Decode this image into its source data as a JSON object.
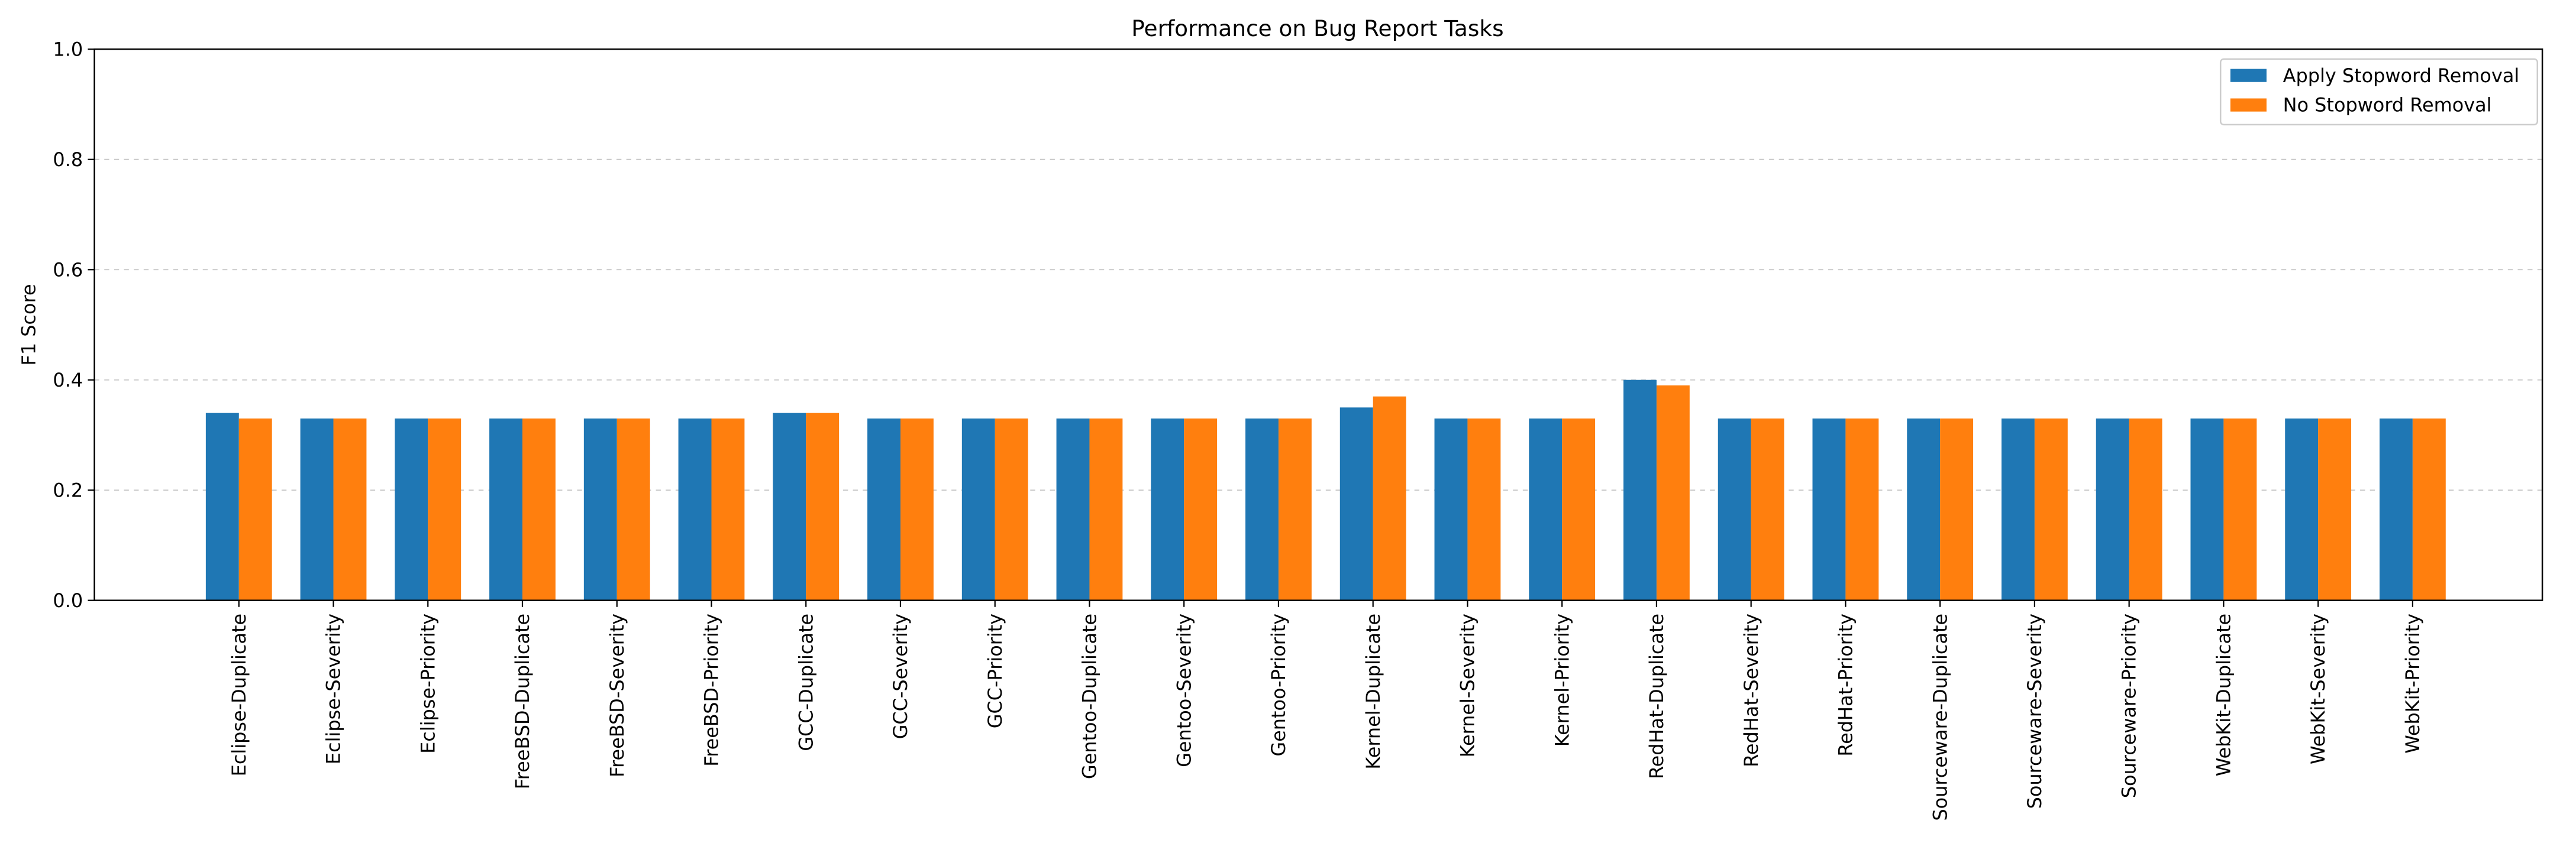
{
  "chart_data": {
    "type": "bar",
    "title": "Performance on Bug Report Tasks",
    "xlabel": "",
    "ylabel": "F1 Score",
    "ylim": [
      0,
      1.0
    ],
    "yticks": [
      "0.0",
      "0.2",
      "0.4",
      "0.6",
      "0.8",
      "1.0"
    ],
    "grid": "horizontal dashed",
    "legend_position": "top-right",
    "categories": [
      "Eclipse-Duplicate",
      "Eclipse-Severity",
      "Eclipse-Priority",
      "FreeBSD-Duplicate",
      "FreeBSD-Severity",
      "FreeBSD-Priority",
      "GCC-Duplicate",
      "GCC-Severity",
      "GCC-Priority",
      "Gentoo-Duplicate",
      "Gentoo-Severity",
      "Gentoo-Priority",
      "Kernel-Duplicate",
      "Kernel-Severity",
      "Kernel-Priority",
      "RedHat-Duplicate",
      "RedHat-Severity",
      "RedHat-Priority",
      "Sourceware-Duplicate",
      "Sourceware-Severity",
      "Sourceware-Priority",
      "WebKit-Duplicate",
      "WebKit-Severity",
      "WebKit-Priority"
    ],
    "series": [
      {
        "name": "Apply Stopword Removal",
        "color": "#1f77b4",
        "values": [
          0.34,
          0.33,
          0.33,
          0.33,
          0.33,
          0.33,
          0.34,
          0.33,
          0.33,
          0.33,
          0.33,
          0.33,
          0.35,
          0.33,
          0.33,
          0.4,
          0.33,
          0.33,
          0.33,
          0.33,
          0.33,
          0.33,
          0.33,
          0.33
        ]
      },
      {
        "name": "No Stopword Removal",
        "color": "#ff7f0e",
        "values": [
          0.33,
          0.33,
          0.33,
          0.33,
          0.33,
          0.33,
          0.34,
          0.33,
          0.33,
          0.33,
          0.33,
          0.33,
          0.37,
          0.33,
          0.33,
          0.39,
          0.33,
          0.33,
          0.33,
          0.33,
          0.33,
          0.33,
          0.33,
          0.33
        ]
      }
    ]
  }
}
